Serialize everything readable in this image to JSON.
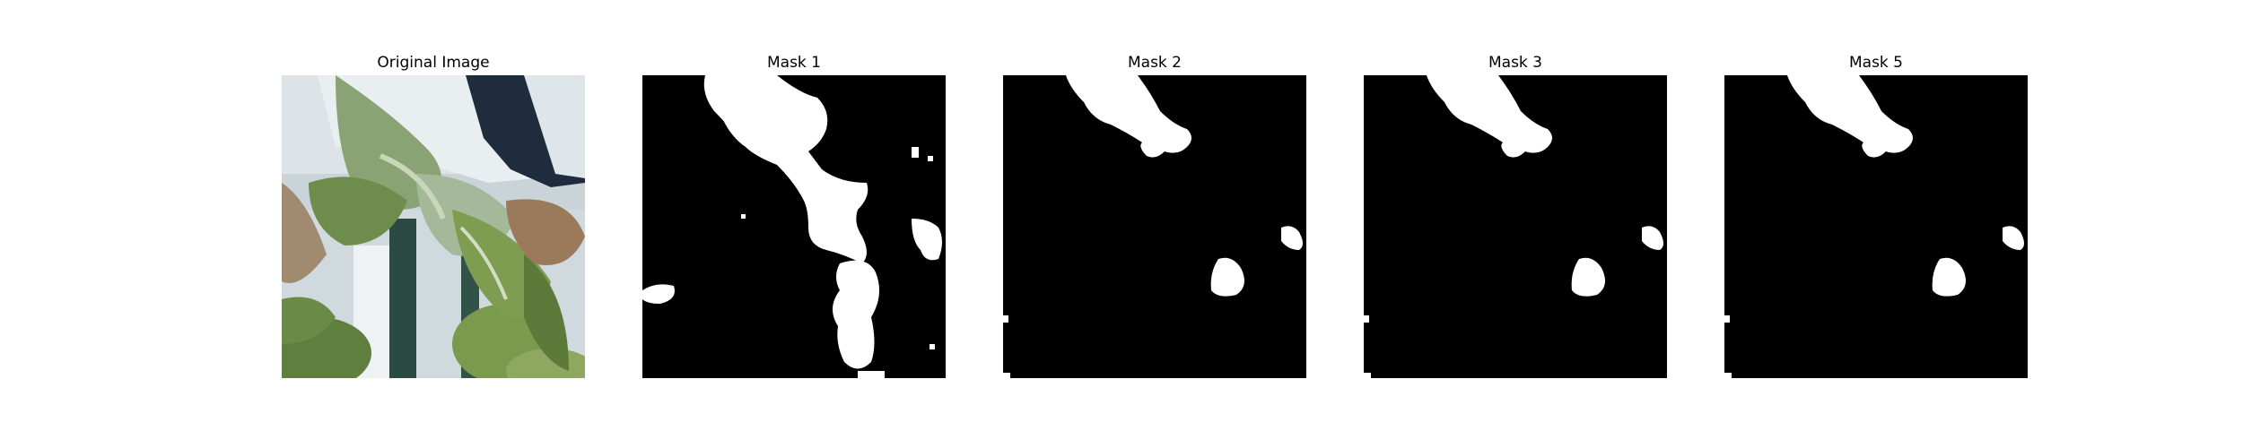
{
  "panels": [
    {
      "title": "Original Image"
    },
    {
      "title": "Mask 1"
    },
    {
      "title": "Mask 2"
    },
    {
      "title": "Mask 3"
    },
    {
      "title": "Mask 5"
    }
  ],
  "colors": {
    "background": "#ffffff",
    "mask_foreground": "#ffffff",
    "mask_background": "#000000"
  }
}
